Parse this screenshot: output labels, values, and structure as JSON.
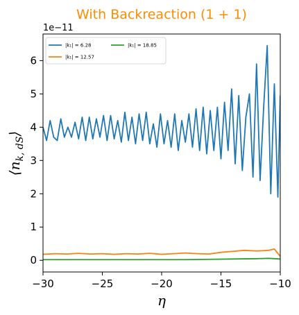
{
  "chart_data": {
    "type": "line",
    "title": "With Backreaction (1 + 1)",
    "title_color": "#ff8c00",
    "xlabel": "η",
    "ylabel": "⟨n_{k,dS}⟩",
    "ylabel_display": "⟨n",
    "ylabel_sub": "k, dS",
    "ylabel_close": "⟩",
    "y_offset_text": "1e−11",
    "xlim": [
      -30,
      -10
    ],
    "ylim": [
      -0.35,
      6.8
    ],
    "xticks": [
      -30,
      -25,
      -20,
      -15,
      -10
    ],
    "xtick_labels": [
      "−30",
      "−25",
      "−20",
      "−15",
      "−10"
    ],
    "yticks": [
      0,
      1,
      2,
      3,
      4,
      5,
      6
    ],
    "ytick_labels": [
      "0",
      "1",
      "2",
      "3",
      "4",
      "5",
      "6"
    ],
    "grid": false,
    "legend_position": "top-left",
    "series": [
      {
        "name": "|k₁| = 6.28",
        "color": "#1f77b4",
        "x": [
          -30,
          -29.7,
          -29.4,
          -29.1,
          -28.8,
          -28.5,
          -28.2,
          -27.9,
          -27.6,
          -27.3,
          -27.0,
          -26.7,
          -26.4,
          -26.1,
          -25.8,
          -25.5,
          -25.2,
          -24.9,
          -24.6,
          -24.3,
          -24.0,
          -23.7,
          -23.4,
          -23.1,
          -22.8,
          -22.5,
          -22.2,
          -21.9,
          -21.6,
          -21.3,
          -21.0,
          -20.7,
          -20.4,
          -20.1,
          -19.8,
          -19.5,
          -19.2,
          -18.9,
          -18.6,
          -18.3,
          -18.0,
          -17.7,
          -17.4,
          -17.1,
          -16.8,
          -16.5,
          -16.2,
          -15.9,
          -15.6,
          -15.3,
          -15.0,
          -14.7,
          -14.4,
          -14.1,
          -13.8,
          -13.5,
          -13.2,
          -12.9,
          -12.6,
          -12.3,
          -12.0,
          -11.7,
          -11.4,
          -11.1,
          -10.8,
          -10.5,
          -10.2,
          -10.0
        ],
        "y": [
          4.0,
          3.6,
          4.2,
          3.7,
          3.6,
          4.25,
          3.7,
          4.0,
          3.7,
          4.15,
          3.65,
          4.3,
          3.6,
          4.3,
          3.65,
          4.25,
          3.7,
          4.35,
          3.6,
          4.35,
          3.65,
          4.2,
          3.55,
          4.45,
          3.6,
          4.3,
          3.5,
          4.4,
          3.6,
          4.45,
          3.5,
          4.1,
          3.4,
          4.4,
          3.5,
          4.2,
          3.4,
          4.4,
          3.3,
          4.2,
          3.55,
          4.4,
          3.4,
          4.55,
          3.3,
          4.6,
          3.2,
          4.5,
          3.3,
          4.6,
          3.05,
          4.75,
          3.3,
          5.15,
          2.9,
          4.95,
          2.7,
          4.3,
          5.0,
          2.5,
          5.9,
          2.4,
          4.6,
          6.45,
          2.0,
          5.3,
          1.9,
          4.95
        ]
      },
      {
        "name": "|k₁| = 12.57",
        "color": "#ff7f0e",
        "x": [
          -30,
          -29,
          -28,
          -27,
          -26,
          -25,
          -24,
          -23,
          -22,
          -21,
          -20,
          -19,
          -18,
          -17,
          -16,
          -15,
          -14,
          -13,
          -12,
          -11,
          -10.5,
          -10
        ],
        "y": [
          0.18,
          0.2,
          0.19,
          0.21,
          0.19,
          0.2,
          0.18,
          0.2,
          0.19,
          0.21,
          0.18,
          0.2,
          0.22,
          0.2,
          0.19,
          0.24,
          0.27,
          0.3,
          0.28,
          0.3,
          0.34,
          0.12
        ]
      },
      {
        "name": "|k₁| = 18.85",
        "color": "#2ca02c",
        "x": [
          -30,
          -28,
          -26,
          -24,
          -22,
          -20,
          -18,
          -16,
          -14,
          -12,
          -11,
          -10
        ],
        "y": [
          0.02,
          0.02,
          0.02,
          0.02,
          0.02,
          0.02,
          0.02,
          0.03,
          0.04,
          0.05,
          0.06,
          0.04
        ]
      }
    ]
  }
}
